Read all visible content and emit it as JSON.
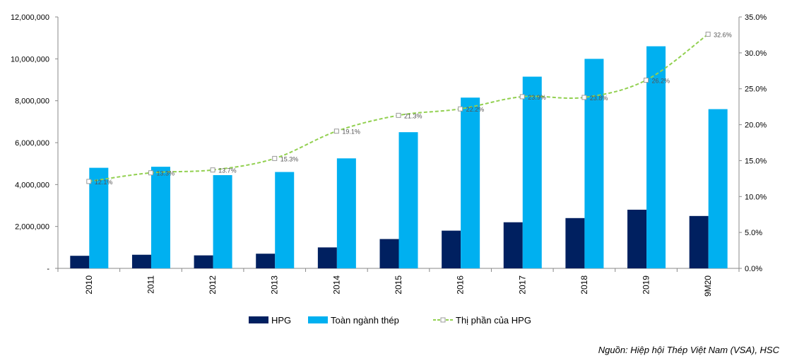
{
  "chart_data": {
    "type": "bar",
    "categories": [
      "2010",
      "2011",
      "2012",
      "2013",
      "2014",
      "2015",
      "2016",
      "2017",
      "2018",
      "2019",
      "9M20"
    ],
    "series": [
      {
        "name": "HPG",
        "type": "bar",
        "axis": "left",
        "color": "#002060",
        "values": [
          600000,
          650000,
          620000,
          700000,
          1000000,
          1400000,
          1800000,
          2200000,
          2400000,
          2800000,
          2500000
        ]
      },
      {
        "name": "Toàn ngành thép",
        "type": "bar",
        "axis": "left",
        "color": "#00B0F0",
        "values": [
          4800000,
          4850000,
          4450000,
          4600000,
          5250000,
          6500000,
          8150000,
          9150000,
          10000000,
          10600000,
          7600000
        ]
      },
      {
        "name": "Thị phần của HPG",
        "type": "line",
        "axis": "right",
        "color": "#92D050",
        "values": [
          12.1,
          13.3,
          13.7,
          15.3,
          19.1,
          21.3,
          22.2,
          23.9,
          23.8,
          26.2,
          32.6
        ],
        "labels": [
          "12.1%",
          "13.3%",
          "13.7%",
          "15.3%",
          "19.1%",
          "21.3%",
          "22.2%",
          "23.9%",
          "23.8%",
          "26.2%",
          "32.6%"
        ]
      }
    ],
    "y_left": {
      "min": 0,
      "max": 12000000,
      "ticks": [
        0,
        2000000,
        4000000,
        6000000,
        8000000,
        10000000,
        12000000
      ],
      "tick_labels": [
        "-",
        "2,000,000",
        "4,000,000",
        "6,000,000",
        "8,000,000",
        "10,000,000",
        "12,000,000"
      ]
    },
    "y_right": {
      "min": 0,
      "max": 35,
      "ticks": [
        0,
        5,
        10,
        15,
        20,
        25,
        30,
        35
      ],
      "tick_labels": [
        "0.0%",
        "5.0%",
        "10.0%",
        "15.0%",
        "20.0%",
        "25.0%",
        "30.0%",
        "35.0%"
      ]
    },
    "legend_position": "bottom-center",
    "grid": false
  },
  "source_note": "Nguồn: Hiệp hội Thép Việt Nam (VSA), HSC"
}
